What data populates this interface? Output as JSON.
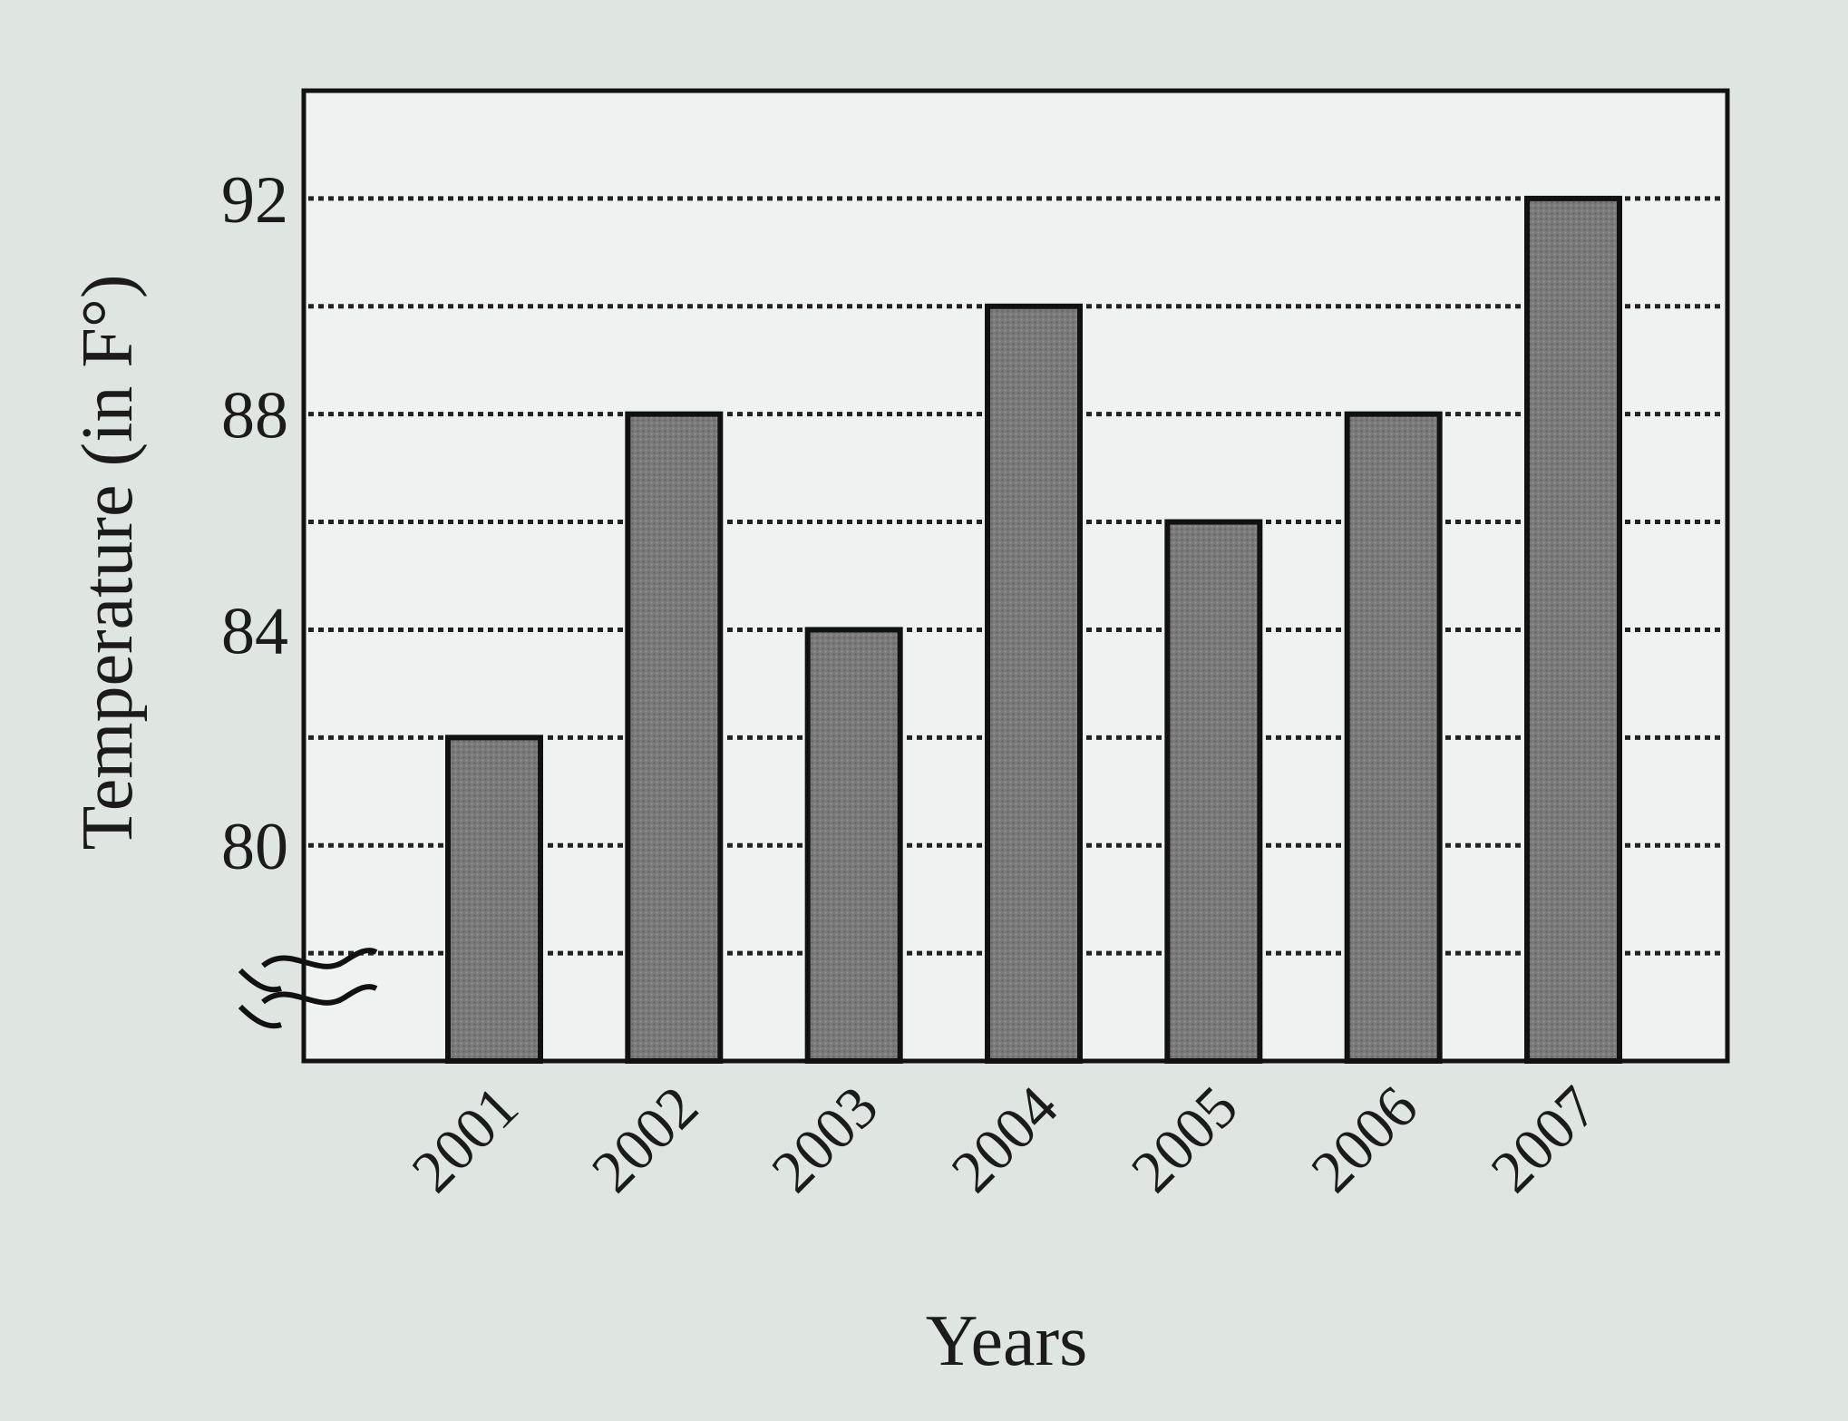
{
  "chart_data": {
    "type": "bar",
    "title": "",
    "xlabel": "Years",
    "ylabel": "Temperature (in F°)",
    "categories": [
      "2001",
      "2002",
      "2003",
      "2004",
      "2005",
      "2006",
      "2007"
    ],
    "values": [
      82,
      88,
      84,
      90,
      86,
      88,
      92
    ],
    "ylim": [
      76,
      94
    ],
    "yticks": [
      80,
      84,
      88,
      92
    ],
    "ytick_labels": [
      "80",
      "84",
      "88",
      "92"
    ],
    "gridlines_every": 2,
    "grid": true,
    "axis_break": true,
    "colors": {
      "bar_fill": "#7a7a7a",
      "bar_stroke": "#111111",
      "background": "#dfe6e2",
      "plot_background": "#eef2f0"
    }
  }
}
